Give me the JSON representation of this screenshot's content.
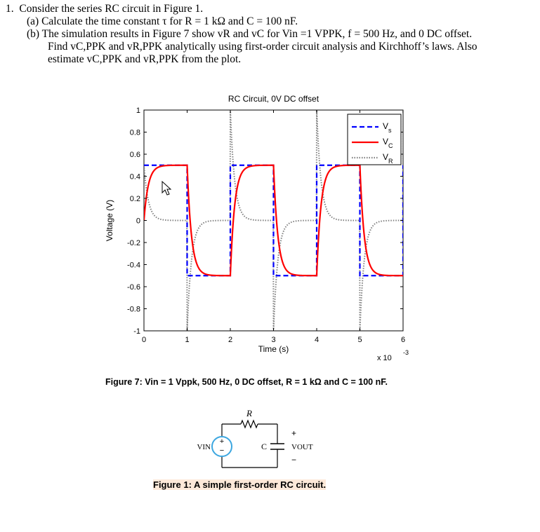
{
  "question": {
    "num": "1.",
    "intro": "Consider the series RC circuit in Figure 1.",
    "part_a": "(a) Calculate the time constant τ for R = 1 kΩ and C = 100 nF.",
    "part_b_1": "(b) The simulation results in Figure 7 show vR and vC for Vin =1 VPPK, f = 500 Hz, and 0 DC offset.",
    "part_b_2": "Find vC,PPK and vR,PPK analytically using first-order circuit analysis and Kirchhoff’s laws. Also",
    "part_b_3": "estimate vC,PPK and vR,PPK from the plot."
  },
  "figure7_caption": "Figure 7: Vin = 1 Vppk, 500 Hz, 0 DC offset, R = 1 kΩ and C = 100 nF.",
  "figure1_caption": "Figure 1: A simple first-order RC circuit.",
  "circuit": {
    "r_label": "R",
    "c_label": "C",
    "vin_label": "VIN",
    "vout_label": "VOUT",
    "plus": "+",
    "minus": "−"
  },
  "colors": {
    "vs": "#0000ff",
    "vc": "#ff0000",
    "vr": "#808080"
  },
  "chart_data": {
    "type": "line",
    "title": "RC Circuit, 0V DC offset",
    "xlabel": "Time (s)",
    "ylabel": "Voltage (V)",
    "x_multiplier": "x 10",
    "x_exponent": "-3",
    "xlim": [
      0,
      0.006
    ],
    "ylim": [
      -1,
      1
    ],
    "xticks": [
      "0",
      "1",
      "2",
      "3",
      "4",
      "5",
      "6"
    ],
    "yticks": [
      "-1",
      "-0.8",
      "-0.6",
      "-0.4",
      "-0.2",
      "0",
      "0.2",
      "0.4",
      "0.6",
      "0.8",
      "1"
    ],
    "legend_position": "top-right",
    "grid": false,
    "series": [
      {
        "name": "Vs",
        "style": "dashed",
        "description": "square wave ±0.5 V, 500 Hz, high from 0 to 1 ms"
      },
      {
        "name": "VC",
        "style": "solid",
        "description": "exponential charge/discharge toward ±0.5 V, tau = 0.1 ms"
      },
      {
        "name": "VR",
        "style": "dotted",
        "description": "Vs − VC, spikes ±1 V decaying to 0"
      }
    ],
    "period": 0.002,
    "amplitude": 0.5,
    "tau": 0.0001
  }
}
